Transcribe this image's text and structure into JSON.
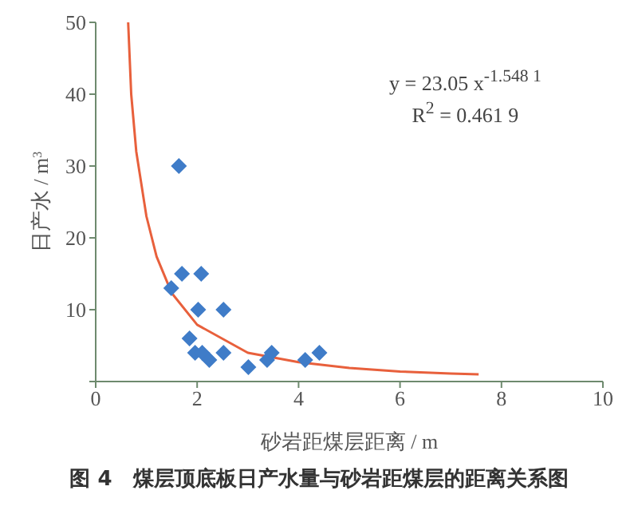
{
  "chart_data": {
    "type": "scatter",
    "title": "图 4　煤层顶底板日产水量与砂岩距煤层的距离关系图",
    "xlabel": "砂岩距煤层距离 / m",
    "ylabel": "日产水 / m$^{3}$",
    "annotations": [
      "y = 23.05 x$^{-1.548 1}$",
      "R$^{2}$ = 0.461 9"
    ],
    "xlim": [
      0,
      10
    ],
    "xticks": [
      0,
      2,
      4,
      6,
      8,
      10
    ],
    "ylim": [
      0,
      50
    ],
    "yticks": [
      {
        "value": 0,
        "label": null
      },
      10,
      20,
      30,
      40,
      50
    ],
    "series": [
      {
        "color": "#3f7cc8",
        "marker": "diamond",
        "x": [
          1.64,
          1.49,
          1.7,
          2.08,
          2.02,
          2.52,
          1.85,
          1.96,
          2.1,
          2.24,
          2.52,
          3.01,
          3.38,
          3.47,
          4.13,
          4.41
        ],
        "values": [
          30,
          13,
          15,
          15,
          10,
          10,
          6,
          4,
          4,
          3,
          4,
          2,
          3,
          4,
          3,
          4
        ]
      },
      {
        "type": "line",
        "color": "#e8603c",
        "marker": "none",
        "x": [
          0.64,
          0.7,
          0.8,
          0.9,
          1,
          1.2,
          1.5,
          2,
          3,
          4,
          5,
          6,
          7,
          7.55
        ],
        "values": [
          50,
          40,
          32,
          27.5,
          23,
          17.4,
          12.3,
          7.9,
          4,
          2.7,
          1.9,
          1.4,
          1.1,
          1
        ]
      }
    ]
  }
}
